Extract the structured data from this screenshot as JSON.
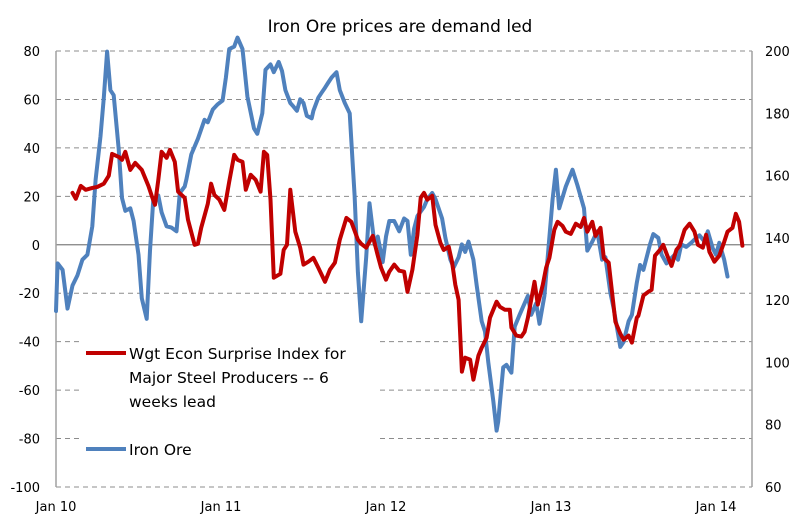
{
  "chart_data": {
    "type": "line",
    "title": "Iron Ore prices are demand led",
    "xlabel": "",
    "ylabel_left": "",
    "ylabel_right": "",
    "x_unit": "year (fractional)",
    "xlim": [
      2010.0,
      2014.22
    ],
    "ylim_left": [
      -100,
      80
    ],
    "ylim_right": [
      60,
      200
    ],
    "grid": true,
    "legend_position": "bottom-left",
    "x_ticks": [
      {
        "label": "Jan 10",
        "value": 2010
      },
      {
        "label": "Jan 11",
        "value": 2011
      },
      {
        "label": "Jan 12",
        "value": 2012
      },
      {
        "label": "Jan 13",
        "value": 2013
      },
      {
        "label": "Jan 14",
        "value": 2014
      }
    ],
    "y_ticks_left": [
      "80",
      "60",
      "40",
      "20",
      "0",
      "-20",
      "-40",
      "-60",
      "-80",
      "-100"
    ],
    "y_ticks_right": [
      "200",
      "180",
      "160",
      "140",
      "120",
      "100",
      "80",
      "60"
    ],
    "series": [
      {
        "name": "Wgt Econ Surprise Index for Major Steel Producers -- 6 weeks lead",
        "legend_lines": [
          "Wgt Econ Surprise Index for",
          "Major Steel Producers -- 6",
          "weeks lead"
        ],
        "axis": "left",
        "color": "#c00000",
        "x": [
          2010.1,
          2010.12,
          2010.15,
          2010.18,
          2010.22,
          2010.25,
          2010.29,
          2010.32,
          2010.34,
          2010.38,
          2010.4,
          2010.42,
          2010.45,
          2010.48,
          2010.52,
          2010.56,
          2010.58,
          2010.6,
          2010.62,
          2010.64,
          2010.67,
          2010.69,
          2010.72,
          2010.74,
          2010.78,
          2010.8,
          2010.84,
          2010.86,
          2010.88,
          2010.92,
          2010.94,
          2010.96,
          2010.99,
          2011.02,
          2011.05,
          2011.08,
          2011.1,
          2011.13,
          2011.15,
          2011.18,
          2011.21,
          2011.24,
          2011.26,
          2011.28,
          2011.3,
          2011.32,
          2011.36,
          2011.38,
          2011.4,
          2011.42,
          2011.45,
          2011.48,
          2011.5,
          2011.53,
          2011.56,
          2011.59,
          2011.63,
          2011.66,
          2011.69,
          2011.72,
          2011.76,
          2011.79,
          2011.83,
          2011.85,
          2011.88,
          2011.92,
          2011.95,
          2011.97,
          2012.0,
          2012.02,
          2012.05,
          2012.08,
          2012.11,
          2012.13,
          2012.16,
          2012.19,
          2012.21,
          2012.23,
          2012.25,
          2012.28,
          2012.3,
          2012.33,
          2012.35,
          2012.38,
          2012.4,
          2012.42,
          2012.44,
          2012.46,
          2012.48,
          2012.51,
          2012.53,
          2012.56,
          2012.58,
          2012.61,
          2012.63,
          2012.67,
          2012.69,
          2012.72,
          2012.75,
          2012.76,
          2012.79,
          2012.82,
          2012.84,
          2012.86,
          2012.88,
          2012.9,
          2012.92,
          2012.95,
          2012.97,
          2012.99,
          2013.02,
          2013.04,
          2013.07,
          2013.09,
          2013.12,
          2013.15,
          2013.18,
          2013.2,
          2013.22,
          2013.25,
          2013.27,
          2013.3,
          2013.32,
          2013.35,
          2013.37,
          2013.39,
          2013.42,
          2013.44,
          2013.47,
          2013.49,
          2013.52,
          2013.53,
          2013.56,
          2013.59,
          2013.61,
          2013.63,
          2013.66,
          2013.68,
          2013.71,
          2013.73,
          2013.76,
          2013.78,
          2013.81,
          2013.84,
          2013.87,
          2013.89,
          2013.92,
          2013.94,
          2013.96,
          2013.99,
          2014.02,
          2014.05,
          2014.07,
          2014.1,
          2014.12,
          2014.14,
          2014.16
        ],
        "y": [
          21.4,
          19.0,
          24.3,
          22.7,
          23.5,
          23.9,
          25.2,
          28.5,
          37.5,
          36.3,
          35.1,
          38.4,
          30.9,
          33.8,
          30.9,
          24.3,
          20.2,
          16.5,
          26.8,
          38.4,
          35.9,
          39.2,
          34.2,
          21.9,
          19.4,
          10.3,
          0,
          0.4,
          7.0,
          16.9,
          25.2,
          20.6,
          18.6,
          14.4,
          26.0,
          37.1,
          35.1,
          34.2,
          22.7,
          28.9,
          26.8,
          21.9,
          38.4,
          37.1,
          18.6,
          -13.6,
          -12.0,
          -2.1,
          0,
          22.7,
          5.4,
          -1.2,
          -8.2,
          -7.0,
          -5.4,
          -9.5,
          -15.3,
          -10.3,
          -7.4,
          2.1,
          11.1,
          9.5,
          2.1,
          0.4,
          -1.2,
          3.7,
          -4.5,
          -9.5,
          -14.4,
          -11.1,
          -8.2,
          -10.7,
          -11.1,
          -19.4,
          -10.3,
          4.1,
          19.4,
          21.4,
          18.6,
          20.2,
          8.2,
          0.8,
          -2.1,
          -0.8,
          -7.0,
          -16.5,
          -22.7,
          -52.4,
          -46.6,
          -47.4,
          -55.7,
          -45.8,
          -42.5,
          -38.4,
          -30.1,
          -23.5,
          -25.6,
          -26.8,
          -26.8,
          -34.2,
          -37.5,
          -37.9,
          -35.9,
          -30.1,
          -22.7,
          -15.3,
          -24.7,
          -16.5,
          -9.5,
          -5.4,
          6.2,
          9.5,
          7.8,
          5.4,
          4.5,
          8.7,
          7.4,
          11.1,
          5.4,
          9.5,
          3.7,
          7.0,
          -5.4,
          -7.4,
          -19.4,
          -31.8,
          -36.7,
          -39.2,
          -37.5,
          -40.4,
          -30.1,
          -29.3,
          -21.0,
          -19.4,
          -18.6,
          -4.5,
          -2.1,
          0,
          -5.4,
          -8.7,
          -2.1,
          -0.4,
          6.2,
          8.7,
          5.4,
          0,
          -1.2,
          4.1,
          -2.9,
          -7.0,
          -4.5,
          1.2,
          5.4,
          7.0,
          12.8,
          9.5,
          -0.4
        ]
      },
      {
        "name": "Iron Ore",
        "legend_lines": [
          "Iron Ore"
        ],
        "axis": "right",
        "color": "#4f81bd",
        "x": [
          2010.0,
          2010.01,
          2010.04,
          2010.07,
          2010.1,
          2010.13,
          2010.16,
          2010.19,
          2010.22,
          2010.24,
          2010.27,
          2010.29,
          2010.31,
          2010.33,
          2010.35,
          2010.38,
          2010.4,
          2010.42,
          2010.45,
          2010.47,
          2010.5,
          2010.52,
          2010.55,
          2010.57,
          2010.59,
          2010.62,
          2010.64,
          2010.67,
          2010.7,
          2010.73,
          2010.75,
          2010.78,
          2010.79,
          2010.82,
          2010.86,
          2010.9,
          2010.92,
          2010.95,
          2010.98,
          2011.01,
          2011.03,
          2011.05,
          2011.08,
          2011.1,
          2011.13,
          2011.16,
          2011.2,
          2011.22,
          2011.25,
          2011.27,
          2011.3,
          2011.32,
          2011.35,
          2011.37,
          2011.39,
          2011.42,
          2011.44,
          2011.46,
          2011.48,
          2011.5,
          2011.52,
          2011.55,
          2011.56,
          2011.59,
          2011.61,
          2011.63,
          2011.65,
          2011.67,
          2011.7,
          2011.72,
          2011.75,
          2011.78,
          2011.81,
          2011.83,
          2011.85,
          2011.88,
          2011.9,
          2011.93,
          2011.95,
          2011.98,
          2012.0,
          2012.02,
          2012.05,
          2012.08,
          2012.11,
          2012.13,
          2012.15,
          2012.17,
          2012.19,
          2012.23,
          2012.25,
          2012.28,
          2012.3,
          2012.34,
          2012.36,
          2012.39,
          2012.41,
          2012.44,
          2012.46,
          2012.48,
          2012.5,
          2012.53,
          2012.55,
          2012.58,
          2012.6,
          2012.62,
          2012.65,
          2012.67,
          2012.68,
          2012.71,
          2012.73,
          2012.76,
          2012.78,
          2012.81,
          2012.84,
          2012.86,
          2012.88,
          2012.91,
          2012.93,
          2012.96,
          2012.98,
          2013.01,
          2013.03,
          2013.05,
          2013.09,
          2013.13,
          2013.16,
          2013.2,
          2013.22,
          2013.25,
          2013.28,
          2013.31,
          2013.33,
          2013.36,
          2013.38,
          2013.42,
          2013.44,
          2013.47,
          2013.49,
          2013.52,
          2013.54,
          2013.56,
          2013.6,
          2013.62,
          2013.65,
          2013.67,
          2013.7,
          2013.72,
          2013.75,
          2013.77,
          2013.79,
          2013.82,
          2013.85,
          2013.88,
          2013.9,
          2013.93,
          2013.95,
          2013.98,
          2014.0,
          2014.02,
          2014.05,
          2014.07
        ],
        "y": [
          116.5,
          131.8,
          129.7,
          117.3,
          124.7,
          128.0,
          133.0,
          134.6,
          143.7,
          158.6,
          172.6,
          185.0,
          199.8,
          187.4,
          185.8,
          168.5,
          152.8,
          148.7,
          149.5,
          145.4,
          134.6,
          120.6,
          114.0,
          135.9,
          152.4,
          153.6,
          148.2,
          143.7,
          143.3,
          142.1,
          154.4,
          156.5,
          158.6,
          166.8,
          171.8,
          177.9,
          177.1,
          181.2,
          182.9,
          184.1,
          191.5,
          200.6,
          201.4,
          204.3,
          200.6,
          185.4,
          175.1,
          173.4,
          180.0,
          194.0,
          195.7,
          193.2,
          196.5,
          193.6,
          187.4,
          183.3,
          182.1,
          180.8,
          184.5,
          183.3,
          179.2,
          178.4,
          180.8,
          185.0,
          186.6,
          188.2,
          189.9,
          191.5,
          193.2,
          187.4,
          183.3,
          180.0,
          153.6,
          128.9,
          113.2,
          133.8,
          151.1,
          137.9,
          140.4,
          132.2,
          140.4,
          145.4,
          145.4,
          142.1,
          146.2,
          145.4,
          134.6,
          142.9,
          147.0,
          149.9,
          152.4,
          154.4,
          152.4,
          146.2,
          140.0,
          133.0,
          130.5,
          133.8,
          137.9,
          135.5,
          138.8,
          133.0,
          124.7,
          113.2,
          109.9,
          100.0,
          87.6,
          78.1,
          81.0,
          98.4,
          99.2,
          96.7,
          111.5,
          115.3,
          119.0,
          121.4,
          115.3,
          119.0,
          112.4,
          121.4,
          133.8,
          152.4,
          161.9,
          149.5,
          156.5,
          161.9,
          156.9,
          149.5,
          135.9,
          138.8,
          142.1,
          133.0,
          133.8,
          122.3,
          117.3,
          105.0,
          106.6,
          113.2,
          115.3,
          125.6,
          131.3,
          129.7,
          137.9,
          141.2,
          140.0,
          134.6,
          131.8,
          133.0,
          134.6,
          133.0,
          137.9,
          137.1,
          138.4,
          140.0,
          140.8,
          138.8,
          142.1,
          136.7,
          134.6,
          138.4,
          133.0,
          127.6
        ]
      }
    ]
  }
}
